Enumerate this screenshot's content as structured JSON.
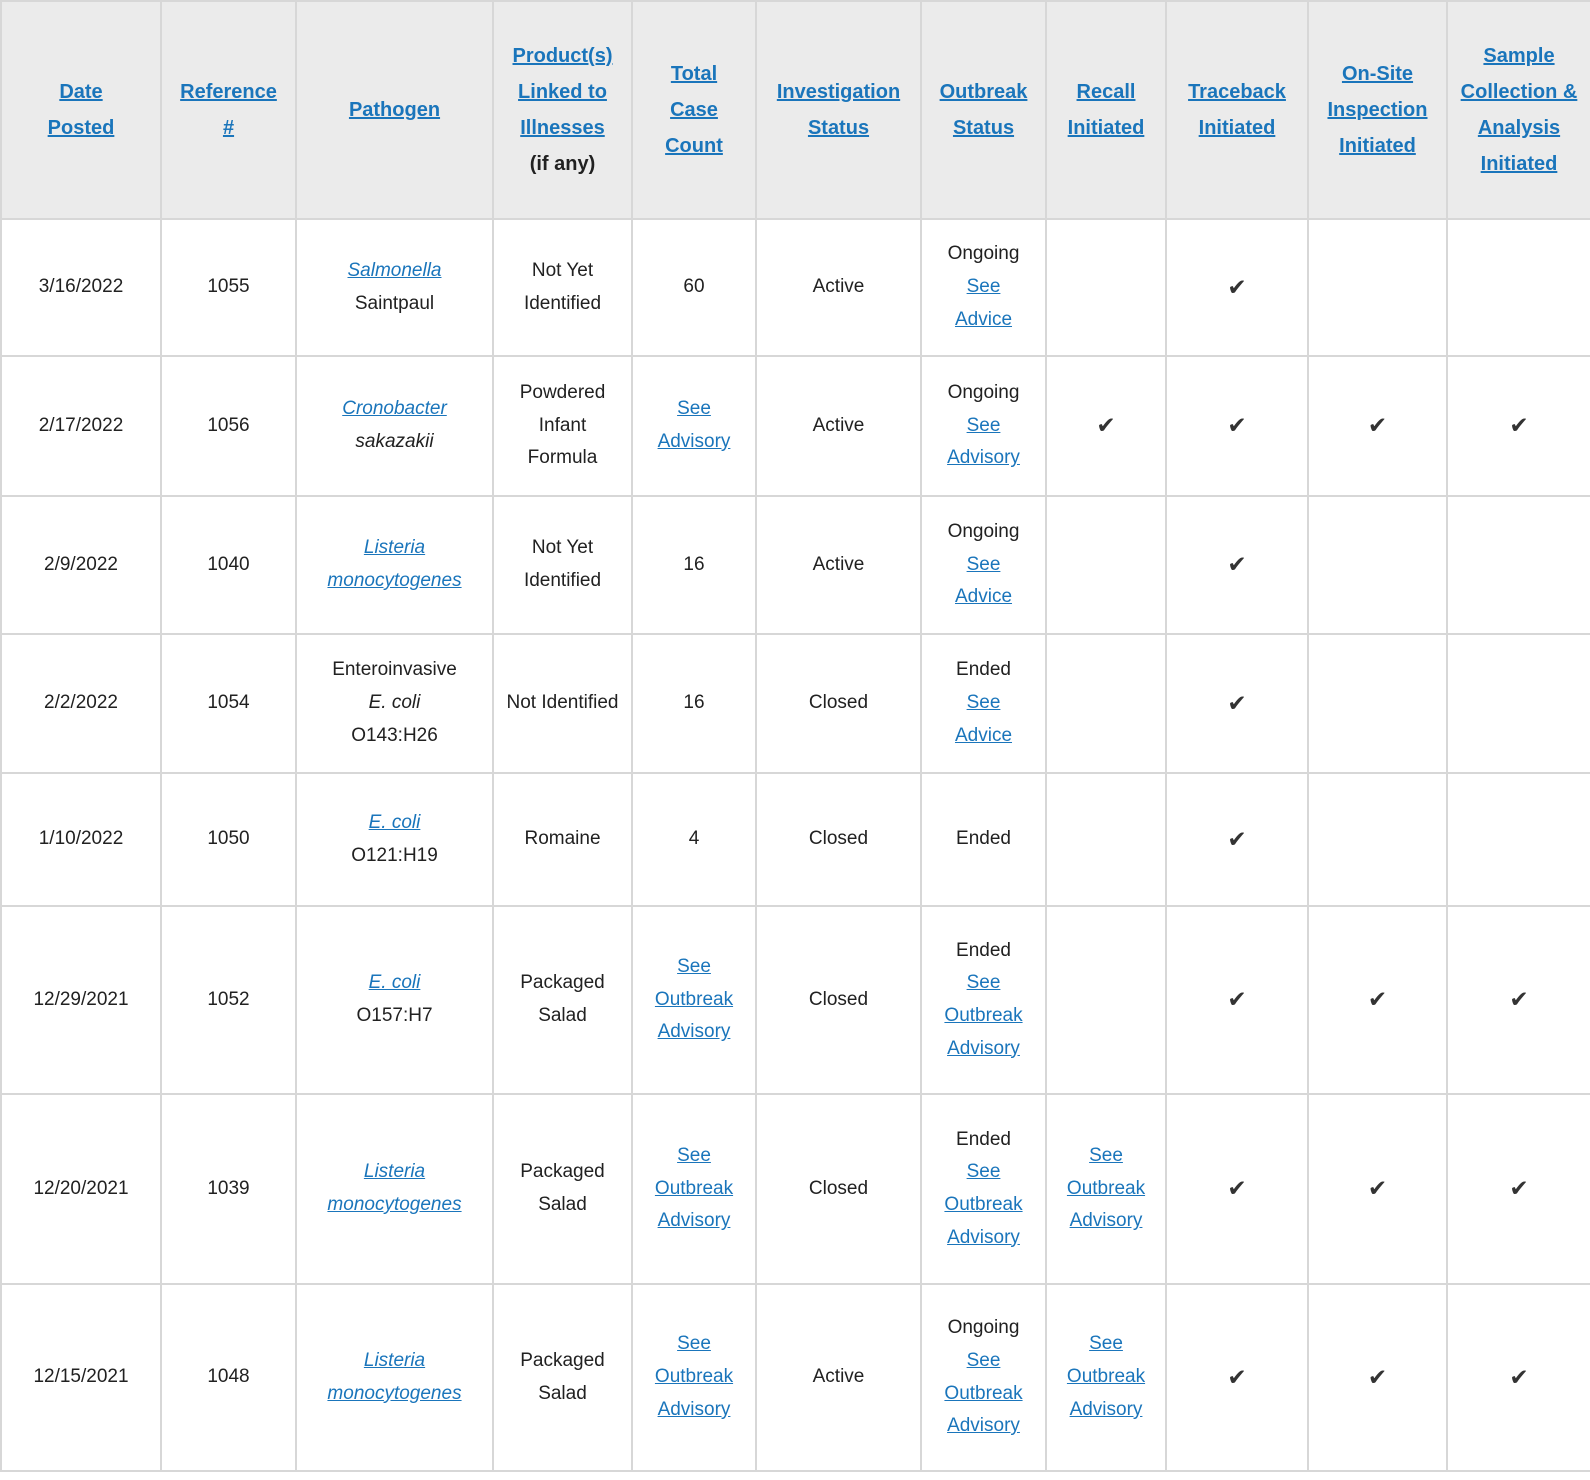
{
  "colors": {
    "link_blue": "#1a75bb",
    "header_bg": "#ebebeb",
    "border": "#d7d7d7",
    "text": "#212121",
    "check": "#333333"
  },
  "icons": {
    "check": "✔"
  },
  "table": {
    "columns": [
      {
        "id": "date_posted",
        "label": "Date Posted"
      },
      {
        "id": "reference",
        "label": "Reference #"
      },
      {
        "id": "pathogen",
        "label": "Pathogen"
      },
      {
        "id": "product",
        "label": "Product(s) Linked to Illnesses",
        "suffix": "(if any)"
      },
      {
        "id": "case_count",
        "label": "Total Case Count"
      },
      {
        "id": "investigation_status",
        "label": "Investigation Status"
      },
      {
        "id": "outbreak_status",
        "label": "Outbreak Status"
      },
      {
        "id": "recall",
        "label": "Recall Initiated"
      },
      {
        "id": "traceback",
        "label": "Traceback Initiated"
      },
      {
        "id": "onsite",
        "label": "On-Site Inspection Initiated"
      },
      {
        "id": "sample",
        "label": "Sample Collection & Analysis Initiated"
      }
    ],
    "rows": [
      {
        "date": "3/16/2022",
        "reference": "1055",
        "pathogen": [
          {
            "text": "Salmonella",
            "italic": true,
            "link": true
          },
          {
            "text": "Saintpaul",
            "italic": false,
            "link": false
          }
        ],
        "product": {
          "text": "Not Yet Identified",
          "link": false
        },
        "case_count": {
          "text": "60",
          "link": false
        },
        "investigation_status": "Active",
        "outbreak": {
          "status": "Ongoing",
          "link": "See Advice"
        },
        "recall": {
          "check": false,
          "link": null
        },
        "traceback": true,
        "onsite": false,
        "sample": false
      },
      {
        "date": "2/17/2022",
        "reference": "1056",
        "pathogen": [
          {
            "text": "Cronobacter",
            "italic": true,
            "link": true
          },
          {
            "text": "sakazakii",
            "italic": true,
            "link": false
          }
        ],
        "product": {
          "text": "Powdered Infant Formula",
          "link": false
        },
        "case_count": {
          "text": "See Advisory",
          "link": true
        },
        "investigation_status": "Active",
        "outbreak": {
          "status": "Ongoing",
          "link": "See Advisory"
        },
        "recall": {
          "check": true,
          "link": null
        },
        "traceback": true,
        "onsite": true,
        "sample": true
      },
      {
        "date": "2/9/2022",
        "reference": "1040",
        "pathogen": [
          {
            "text": "Listeria monocytogenes",
            "italic": true,
            "link": true
          }
        ],
        "product": {
          "text": "Not Yet Identified",
          "link": false
        },
        "case_count": {
          "text": "16",
          "link": false
        },
        "investigation_status": "Active",
        "outbreak": {
          "status": "Ongoing",
          "link": "See Advice"
        },
        "recall": {
          "check": false,
          "link": null
        },
        "traceback": true,
        "onsite": false,
        "sample": false
      },
      {
        "date": "2/2/2022",
        "reference": "1054",
        "pathogen": [
          {
            "text": "Enteroinvasive",
            "italic": false,
            "link": false
          },
          {
            "text": "E. coli",
            "italic": true,
            "link": false
          },
          {
            "text": "O143:H26",
            "italic": false,
            "link": false
          }
        ],
        "product": {
          "text": "Not Identified",
          "link": false
        },
        "case_count": {
          "text": "16",
          "link": false
        },
        "investigation_status": "Closed",
        "outbreak": {
          "status": "Ended",
          "link": "See Advice"
        },
        "recall": {
          "check": false,
          "link": null
        },
        "traceback": true,
        "onsite": false,
        "sample": false
      },
      {
        "date": "1/10/2022",
        "reference": "1050",
        "pathogen": [
          {
            "text": "E. coli",
            "italic": true,
            "link": true
          },
          {
            "text": "O121:H19",
            "italic": false,
            "link": false
          }
        ],
        "product": {
          "text": "Romaine",
          "link": false
        },
        "case_count": {
          "text": "4",
          "link": false
        },
        "investigation_status": "Closed",
        "outbreak": {
          "status": "Ended",
          "link": null
        },
        "recall": {
          "check": false,
          "link": null
        },
        "traceback": true,
        "onsite": false,
        "sample": false
      },
      {
        "date": "12/29/2021",
        "reference": "1052",
        "pathogen": [
          {
            "text": "E. coli",
            "italic": true,
            "link": true
          },
          {
            "text": "O157:H7",
            "italic": false,
            "link": false
          }
        ],
        "product": {
          "text": "Packaged Salad",
          "link": false
        },
        "case_count": {
          "text": "See Outbreak Advisory",
          "link": true
        },
        "investigation_status": "Closed",
        "outbreak": {
          "status": "Ended",
          "link": "See Outbreak Advisory"
        },
        "recall": {
          "check": false,
          "link": null
        },
        "traceback": true,
        "onsite": true,
        "sample": true
      },
      {
        "date": "12/20/2021",
        "reference": "1039",
        "pathogen": [
          {
            "text": "Listeria monocytogenes",
            "italic": true,
            "link": true
          }
        ],
        "product": {
          "text": "Packaged Salad",
          "link": false
        },
        "case_count": {
          "text": "See Outbreak Advisory",
          "link": true
        },
        "investigation_status": "Closed",
        "outbreak": {
          "status": "Ended",
          "link": "See Outbreak Advisory"
        },
        "recall": {
          "check": false,
          "link": "See Outbreak Advisory"
        },
        "traceback": true,
        "onsite": true,
        "sample": true
      },
      {
        "date": "12/15/2021",
        "reference": "1048",
        "pathogen": [
          {
            "text": "Listeria monocytogenes",
            "italic": true,
            "link": true
          }
        ],
        "product": {
          "text": "Packaged Salad",
          "link": false
        },
        "case_count": {
          "text": "See Outbreak Advisory",
          "link": true
        },
        "investigation_status": "Active",
        "outbreak": {
          "status": "Ongoing",
          "link": "See Outbreak Advisory"
        },
        "recall": {
          "check": false,
          "link": "See Outbreak Advisory"
        },
        "traceback": true,
        "onsite": true,
        "sample": true
      }
    ]
  }
}
